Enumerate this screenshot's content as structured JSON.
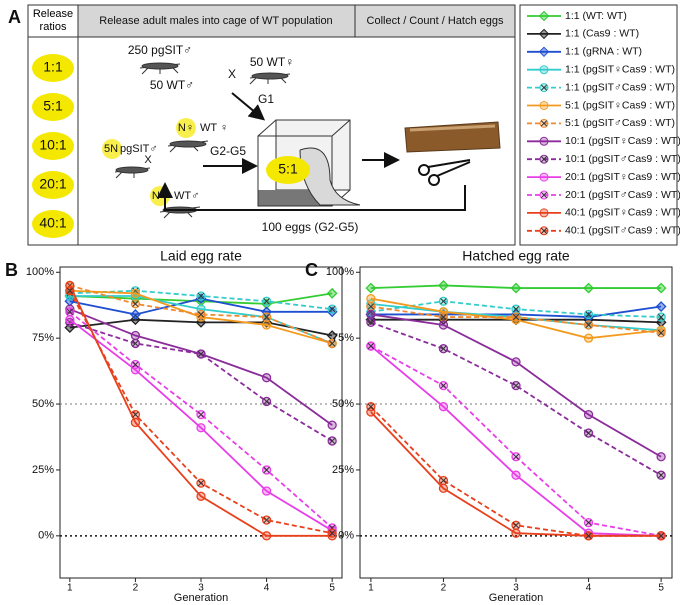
{
  "diagram": {
    "panel_label": "A",
    "ratio_header": "Release ratios",
    "ratios": [
      "1:1",
      "5:1",
      "10:1",
      "20:1",
      "40:1"
    ],
    "step1_header": "Release adult males into cage of WT population",
    "step2_header": "Collect / Count / Hatch eggs",
    "g1_males": "250 pgSIT♂",
    "g1_cross": "X",
    "g1_females": "50 WT♀",
    "g1_wt_males": "50 WT♂",
    "g1_label": "G1",
    "g2_multiplier": "5N",
    "g2_males": "pgSIT♂",
    "g2_n1": "N♀",
    "g2_females": "WT ♀",
    "g2_cross": "X",
    "g2_n2": "N♀",
    "g2_wt_males": "WT♂",
    "g2_label": "G2-G5",
    "cage_ratio": "5:1",
    "feedback": "100 eggs (G2-G5)"
  },
  "chart_data": [
    {
      "type": "line",
      "panel_label": "B",
      "title": "Laid egg rate",
      "x_label": "Generation",
      "x": [
        1,
        2,
        3,
        4,
        5
      ],
      "xlim": [
        0.85,
        5.15
      ],
      "xticks": [
        1,
        2,
        3,
        4,
        5
      ],
      "ylim": [
        -16,
        102
      ],
      "yticks": [
        {
          "value": 0,
          "label": "0%"
        },
        {
          "value": 25,
          "label": "25%"
        },
        {
          "value": 50,
          "label": "50%"
        },
        {
          "value": 75,
          "label": "75%"
        },
        {
          "value": 100,
          "label": "100%"
        }
      ],
      "hlines": [
        0,
        50
      ],
      "series": [
        {
          "name": "1:1 (WT: WT)",
          "color": "#33cc33",
          "marker": "diamond",
          "dashed": false,
          "values": [
            91,
            90,
            89,
            88,
            92
          ]
        },
        {
          "name": "1:1 (Cas9 : WT)",
          "color": "#222222",
          "marker": "diamond",
          "dashed": false,
          "values": [
            79,
            82,
            81,
            81,
            76
          ]
        },
        {
          "name": "1:1 (gRNA : WT)",
          "color": "#1f4fd1",
          "marker": "diamond",
          "dashed": false,
          "values": [
            89,
            84,
            90,
            85,
            85
          ]
        },
        {
          "name": "1:1 (pgSIT♀Cas9 : WT)",
          "color": "#33cccc",
          "marker": "circle",
          "dashed": false,
          "values": [
            91,
            91,
            86,
            83,
            73
          ]
        },
        {
          "name": "1:1 (pgSIT♂Cas9 : WT)",
          "color": "#33cccc",
          "marker": "circle-x",
          "dashed": true,
          "values": [
            92,
            93,
            91,
            89,
            86
          ]
        },
        {
          "name": "5:1 (pgSIT♀Cas9 : WT)",
          "color": "#f39a1e",
          "marker": "circle",
          "dashed": false,
          "values": [
            93,
            92,
            83,
            80,
            73
          ]
        },
        {
          "name": "5:1 (pgSIT♂Cas9 : WT)",
          "color": "#f08a30",
          "marker": "circle-x",
          "dashed": true,
          "values": [
            95,
            88,
            84,
            83,
            73
          ]
        },
        {
          "name": "10:1 (pgSIT♀Cas9 : WT)",
          "color": "#8b2c9b",
          "marker": "circle",
          "dashed": false,
          "values": [
            86,
            76,
            69,
            60,
            42
          ]
        },
        {
          "name": "10:1 (pgSIT♂Cas9 : WT)",
          "color": "#8b2c9b",
          "marker": "circle-x",
          "dashed": true,
          "values": [
            81,
            73,
            69,
            51,
            36
          ]
        },
        {
          "name": "20:1 (pgSIT♀Cas9 : WT)",
          "color": "#e83ee8",
          "marker": "circle",
          "dashed": false,
          "values": [
            82,
            63,
            41,
            17,
            2
          ]
        },
        {
          "name": "20:1 (pgSIT♂Cas9 : WT)",
          "color": "#e83ee8",
          "marker": "circle-x",
          "dashed": true,
          "values": [
            85,
            65,
            46,
            25,
            3
          ]
        },
        {
          "name": "40:1 (pgSIT♀Cas9 : WT)",
          "color": "#e8401c",
          "marker": "circle",
          "dashed": false,
          "values": [
            95,
            43,
            15,
            0,
            0
          ]
        },
        {
          "name": "40:1 (pgSIT♂Cas9 : WT)",
          "color": "#e8401c",
          "marker": "circle-x",
          "dashed": true,
          "values": [
            93,
            46,
            20,
            6,
            1
          ]
        }
      ]
    },
    {
      "type": "line",
      "panel_label": "C",
      "title": "Hatched egg rate",
      "x_label": "Generation",
      "x": [
        1,
        2,
        3,
        4,
        5
      ],
      "xlim": [
        0.85,
        5.15
      ],
      "xticks": [
        1,
        2,
        3,
        4,
        5
      ],
      "ylim": [
        -16,
        102
      ],
      "yticks": [
        {
          "value": 0,
          "label": "0%"
        },
        {
          "value": 25,
          "label": "25%"
        },
        {
          "value": 50,
          "label": "50%"
        },
        {
          "value": 75,
          "label": "75%"
        },
        {
          "value": 100,
          "label": "100%"
        }
      ],
      "hlines": [
        0,
        50
      ],
      "series": [
        {
          "color": "#33cc33",
          "marker": "diamond",
          "dashed": false,
          "values": [
            94,
            95,
            94,
            94,
            94
          ]
        },
        {
          "color": "#222222",
          "marker": "diamond",
          "dashed": false,
          "values": [
            82,
            82,
            82,
            82,
            81
          ]
        },
        {
          "color": "#1f4fd1",
          "marker": "diamond",
          "dashed": false,
          "values": [
            84,
            84,
            84,
            83,
            87
          ]
        },
        {
          "color": "#33cccc",
          "marker": "circle",
          "dashed": false,
          "values": [
            88,
            85,
            83,
            80,
            78
          ]
        },
        {
          "color": "#33cccc",
          "marker": "circle-x",
          "dashed": true,
          "values": [
            85,
            89,
            86,
            84,
            83
          ]
        },
        {
          "color": "#f39a1e",
          "marker": "circle",
          "dashed": false,
          "values": [
            90,
            85,
            82,
            75,
            78
          ]
        },
        {
          "color": "#f08a30",
          "marker": "circle-x",
          "dashed": true,
          "values": [
            87,
            83,
            83,
            80,
            77
          ]
        },
        {
          "color": "#8b2c9b",
          "marker": "circle",
          "dashed": false,
          "values": [
            84,
            80,
            66,
            46,
            30
          ]
        },
        {
          "color": "#8b2c9b",
          "marker": "circle-x",
          "dashed": true,
          "values": [
            81,
            71,
            57,
            39,
            23
          ]
        },
        {
          "color": "#e83ee8",
          "marker": "circle",
          "dashed": false,
          "values": [
            72,
            49,
            23,
            1,
            0
          ]
        },
        {
          "color": "#e83ee8",
          "marker": "circle-x",
          "dashed": true,
          "values": [
            72,
            57,
            30,
            5,
            0
          ]
        },
        {
          "color": "#e8401c",
          "marker": "circle",
          "dashed": false,
          "values": [
            47,
            18,
            1,
            0,
            0
          ]
        },
        {
          "color": "#e8401c",
          "marker": "circle-x",
          "dashed": true,
          "values": [
            49,
            21,
            4,
            0,
            0
          ]
        }
      ]
    }
  ]
}
